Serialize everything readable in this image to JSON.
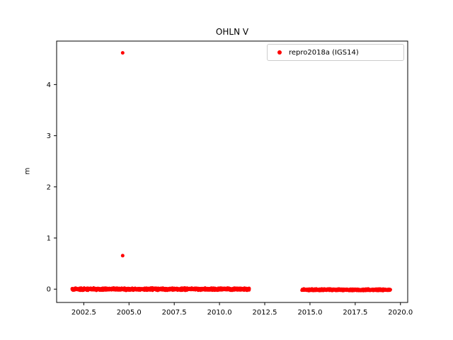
{
  "chart_data": {
    "type": "scatter",
    "title": "OHLN V",
    "xlabel": "",
    "ylabel": "m",
    "xlim": [
      2001.0,
      2020.4
    ],
    "ylim": [
      -0.26,
      4.85
    ],
    "xticks": [
      2002.5,
      2005.0,
      2007.5,
      2010.0,
      2012.5,
      2015.0,
      2017.5,
      2020.0
    ],
    "xtick_labels": [
      "2002.5",
      "2005.0",
      "2007.5",
      "2010.0",
      "2012.5",
      "2015.0",
      "2017.5",
      "2020.0"
    ],
    "yticks": [
      0,
      1,
      2,
      3,
      4
    ],
    "ytick_labels": [
      "0",
      "1",
      "2",
      "3",
      "4"
    ],
    "grid": false,
    "legend": [
      {
        "label": "repro2018a (IGS14)",
        "marker": "red-dot",
        "color": "#ff0000"
      }
    ],
    "legend_position": "upper right",
    "series": [
      {
        "name": "repro2018a (IGS14)",
        "color": "#ff0000",
        "marker_radius_px": 2.2,
        "dense_segments": [
          {
            "x_start": 2001.85,
            "x_end": 2011.65,
            "y_mean": 0.0,
            "y_jitter": 0.018,
            "n_points": 1400
          },
          {
            "x_start": 2014.55,
            "x_end": 2019.45,
            "y_mean": -0.012,
            "y_jitter": 0.014,
            "n_points": 700
          }
        ],
        "outliers": [
          {
            "x": 2004.65,
            "y": 4.62
          },
          {
            "x": 2004.65,
            "y": 0.655
          }
        ]
      }
    ]
  },
  "colors": {
    "point": "#ff0000",
    "axis": "#000000",
    "background": "#ffffff",
    "legend_border": "#cccccc"
  }
}
